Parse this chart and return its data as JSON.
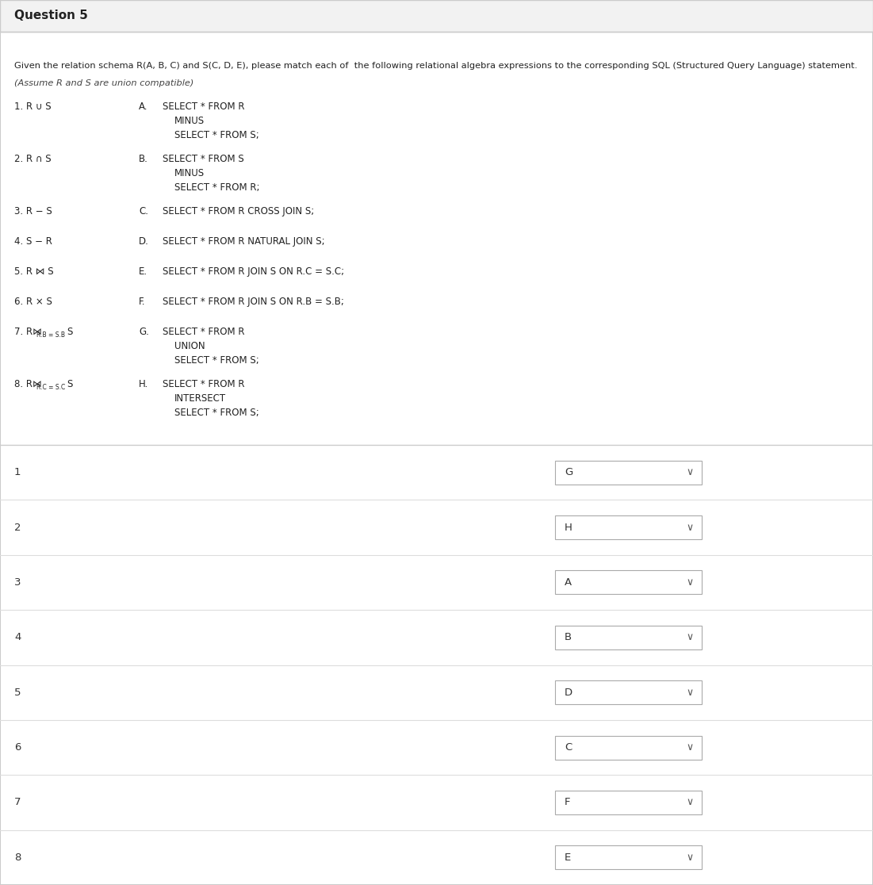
{
  "title": "Question 5",
  "bg_color": "#ffffff",
  "header_bg": "#f2f2f2",
  "border_color": "#cccccc",
  "sep_color": "#dddddd",
  "intro_line1": "Given the relation schema R(A, B, C) and S(C, D, E), please match each of  the following relational algebra expressions to the corresponding SQL (Structured Query Language) statement.",
  "intro_line2": "(Assume R and S are union compatible)",
  "left_items": [
    [
      "1. R ∪ S",
      false
    ],
    [
      "2. R ∩ S",
      false
    ],
    [
      "3. R − S",
      false
    ],
    [
      "4. S − R",
      false
    ],
    [
      "5. R ⋈ S",
      false
    ],
    [
      "6. R × S",
      false
    ],
    [
      "7. R⋈",
      true,
      "R.B = S.B",
      "S"
    ],
    [
      "8. R⋈",
      true,
      "R.C = S.C",
      "S"
    ]
  ],
  "right_blocks": [
    {
      "label": "A.",
      "lines": [
        "SELECT * FROM R",
        "MINUS",
        "SELECT * FROM S;"
      ]
    },
    {
      "label": "B.",
      "lines": [
        "SELECT * FROM S",
        "MINUS",
        "SELECT * FROM R;"
      ]
    },
    {
      "label": "C.",
      "lines": [
        "SELECT * FROM R CROSS JOIN S;"
      ]
    },
    {
      "label": "D.",
      "lines": [
        "SELECT * FROM R NATURAL JOIN S;"
      ]
    },
    {
      "label": "E.",
      "lines": [
        "SELECT * FROM R JOIN S ON R.C = S.C;"
      ]
    },
    {
      "label": "F.",
      "lines": [
        "SELECT * FROM R JOIN S ON R.B = S.B;"
      ]
    },
    {
      "label": "G.",
      "lines": [
        "SELECT * FROM R",
        "UNION",
        "SELECT * FROM S;"
      ]
    },
    {
      "label": "H.",
      "lines": [
        "SELECT * FROM R",
        "INTERSECT",
        "SELECT * FROM S;"
      ]
    }
  ],
  "answers": [
    "G",
    "H",
    "A",
    "B",
    "D",
    "C",
    "F",
    "E"
  ],
  "row_numbers": [
    "1",
    "2",
    "3",
    "4",
    "5",
    "6",
    "7",
    "8"
  ]
}
